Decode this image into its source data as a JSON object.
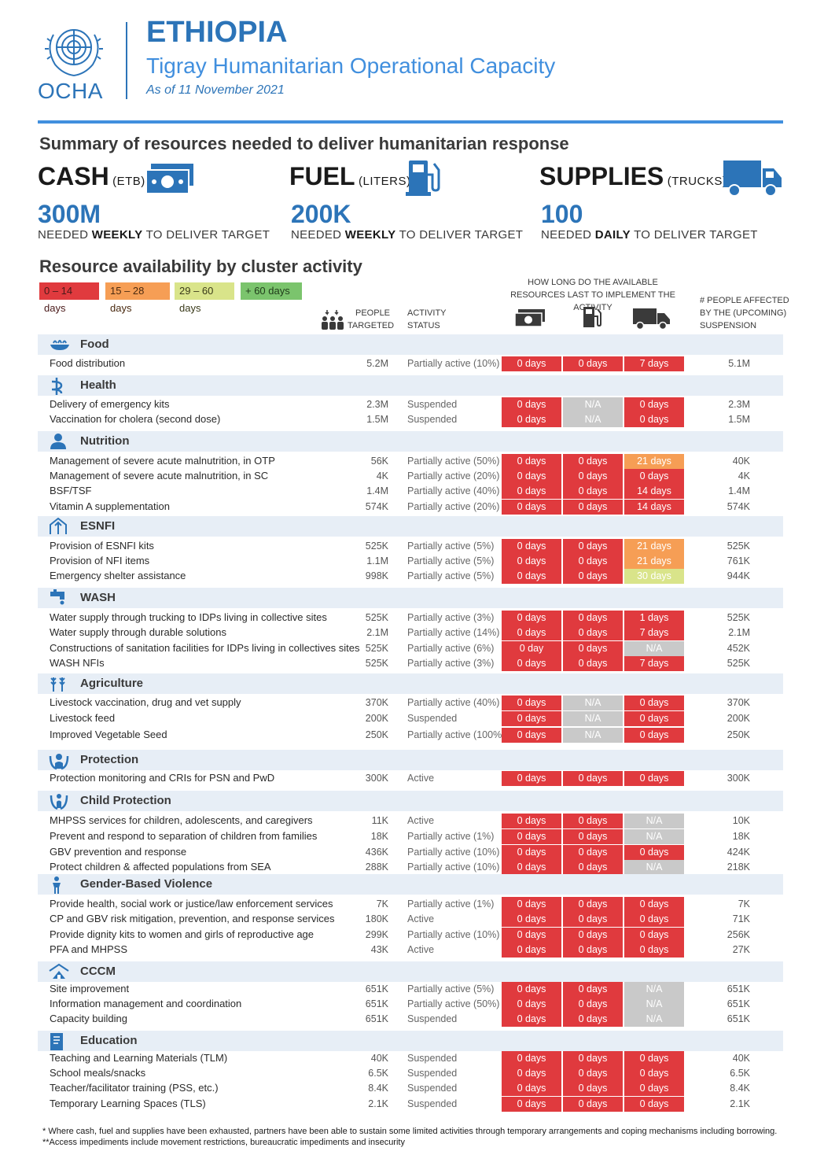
{
  "header": {
    "logo_text": "OCHA",
    "country": "ETHIOPIA",
    "title": "Tigray Humanitarian Operational Capacity",
    "date": "As of 11 November 2021"
  },
  "summary": {
    "title": "Summary of resources needed to deliver humanitarian response",
    "cash": {
      "label": "CASH",
      "unit": "(ETB)",
      "value": "300M",
      "note_pre": "NEEDED ",
      "note_bold": "WEEKLY",
      "note_post": " TO DELIVER TARGET"
    },
    "fuel": {
      "label": "FUEL",
      "unit": "(LITERS)",
      "value": "200K",
      "note_pre": "NEEDED ",
      "note_bold": "WEEKLY",
      "note_post": " TO DELIVER TARGET"
    },
    "supplies": {
      "label": "SUPPLIES",
      "unit": "(TRUCKS)",
      "value": "100",
      "note_pre": "NEEDED ",
      "note_bold": "DAILY",
      "note_post": " TO DELIVER TARGET"
    }
  },
  "availability": {
    "title": "Resource availability by cluster activity",
    "legend": [
      "0 – 14 days",
      "15 – 28 days",
      "29 – 60 days",
      "+ 60 days"
    ],
    "legend_colors": [
      "#e03a3e",
      "#f69e55",
      "#d9e48a",
      "#7bc46d"
    ],
    "col_people_1": "PEOPLE",
    "col_people_2": "TARGETED",
    "col_status_1": "ACTIVITY",
    "col_status_2": "STATUS",
    "col_duration_1": "HOW LONG DO THE AVAILABLE",
    "col_duration_2": "RESOURCES LAST TO IMPLEMENT THE ACTIVITY",
    "col_affected_1": "# PEOPLE AFFECTED",
    "col_affected_2": "BY THE (UPCOMING)",
    "col_affected_3": "SUSPENSION"
  },
  "clusters": [
    {
      "name": "Food",
      "icon": "food-icon",
      "rows": [
        {
          "activity": "Food distribution",
          "people": "5.2M",
          "status": "Partially active (10%)",
          "cash": "0 days",
          "fuel": "0 days",
          "supplies": "7 days",
          "cash_c": "red",
          "fuel_c": "red",
          "supplies_c": "red",
          "affected": "5.1M"
        }
      ]
    },
    {
      "name": "Health",
      "icon": "health-icon",
      "rows": [
        {
          "activity": "Delivery of emergency kits",
          "people": "2.3M",
          "status": "Suspended",
          "cash": "0 days",
          "fuel": "N/A",
          "supplies": "0 days",
          "cash_c": "red",
          "fuel_c": "na",
          "supplies_c": "red",
          "affected": "2.3M"
        },
        {
          "activity": "Vaccination for cholera (second dose)",
          "people": "1.5M",
          "status": "Suspended",
          "cash": "0 days",
          "fuel": "N/A",
          "supplies": "0 days",
          "cash_c": "red",
          "fuel_c": "na",
          "supplies_c": "red",
          "affected": "1.5M"
        }
      ]
    },
    {
      "name": "Nutrition",
      "icon": "nutrition-icon",
      "rows": [
        {
          "activity": "Management of severe acute malnutrition, in OTP",
          "people": "56K",
          "status": "Partially active (50%)",
          "cash": "0 days",
          "fuel": "0 days",
          "supplies": "21 days",
          "cash_c": "red",
          "fuel_c": "red",
          "supplies_c": "orange",
          "affected": "40K"
        },
        {
          "activity": "Management of severe acute malnutrition, in SC",
          "people": "4K",
          "status": "Partially active (20%)",
          "cash": "0 days",
          "fuel": "0 days",
          "supplies": "0 days",
          "cash_c": "red",
          "fuel_c": "red",
          "supplies_c": "red",
          "affected": "4K"
        },
        {
          "activity": "BSF/TSF",
          "people": "1.4M",
          "status": "Partially active (40%)",
          "cash": "0 days",
          "fuel": "0 days",
          "supplies": "14 days",
          "cash_c": "red",
          "fuel_c": "red",
          "supplies_c": "red",
          "affected": "1.4M"
        },
        {
          "activity": "Vitamin A supplementation",
          "people": "574K",
          "status": "Partially active (20%)",
          "cash": "0 days",
          "fuel": "0 days",
          "supplies": "14 days",
          "cash_c": "red",
          "fuel_c": "red",
          "supplies_c": "red",
          "affected": "574K"
        }
      ]
    },
    {
      "name": "ESNFI",
      "icon": "shelter-icon",
      "rows": [
        {
          "activity": "Provision of ESNFI kits",
          "people": "525K",
          "status": "Partially active (5%)",
          "cash": "0 days",
          "fuel": "0 days",
          "supplies": "21 days",
          "cash_c": "red",
          "fuel_c": "red",
          "supplies_c": "orange",
          "affected": "525K"
        },
        {
          "activity": "Provision of NFI items",
          "people": "1.1M",
          "status": "Partially active (5%)",
          "cash": "0 days",
          "fuel": "0 days",
          "supplies": "21 days",
          "cash_c": "red",
          "fuel_c": "red",
          "supplies_c": "orange",
          "affected": "761K"
        },
        {
          "activity": "Emergency shelter assistance",
          "people": "998K",
          "status": "Partially active (5%)",
          "cash": "0 days",
          "fuel": "0 days",
          "supplies": "30 days",
          "cash_c": "red",
          "fuel_c": "red",
          "supplies_c": "yellow",
          "affected": "944K"
        }
      ]
    },
    {
      "name": "WASH",
      "icon": "water-tap-icon",
      "rows": [
        {
          "activity": "Water supply through trucking to IDPs living in collective sites",
          "people": "525K",
          "status": "Partially active (3%)",
          "cash": "0 days",
          "fuel": "0 days",
          "supplies": "1 days",
          "cash_c": "red",
          "fuel_c": "red",
          "supplies_c": "red",
          "affected": "525K"
        },
        {
          "activity": "Water supply through durable solutions",
          "people": "2.1M",
          "status": "Partially active (14%)",
          "cash": "0 days",
          "fuel": "0 days",
          "supplies": "7 days",
          "cash_c": "red",
          "fuel_c": "red",
          "supplies_c": "red",
          "affected": "2.1M"
        },
        {
          "activity": "Constructions of sanitation facilities for IDPs living in collectives sites",
          "people": "525K",
          "status": "Partially active (6%)",
          "cash": "0 day",
          "fuel": "0 days",
          "supplies": "N/A",
          "cash_c": "red",
          "fuel_c": "red",
          "supplies_c": "na",
          "affected": "452K"
        },
        {
          "activity": "WASH NFIs",
          "people": "525K",
          "status": "Partially active (3%)",
          "cash": "0 days",
          "fuel": "0 days",
          "supplies": "7 days",
          "cash_c": "red",
          "fuel_c": "red",
          "supplies_c": "red",
          "affected": "525K"
        }
      ]
    },
    {
      "name": "Agriculture",
      "icon": "wheat-icon",
      "rows": [
        {
          "activity": "Livestock vaccination, drug and vet supply",
          "people": "370K",
          "status": "Partially active (40%)",
          "cash": "0 days",
          "fuel": "N/A",
          "supplies": "0 days",
          "cash_c": "red",
          "fuel_c": "na",
          "supplies_c": "red",
          "affected": "370K"
        },
        {
          "activity": "Livestock feed",
          "people": "200K",
          "status": "Suspended",
          "cash": "0 days",
          "fuel": "N/A",
          "supplies": "0 days",
          "cash_c": "red",
          "fuel_c": "na",
          "supplies_c": "red",
          "affected": "200K"
        },
        {
          "activity": "Improved Vegetable Seed",
          "people": "250K",
          "status": "Partially active (100%)",
          "cash": "0 days",
          "fuel": "N/A",
          "supplies": "0 days",
          "cash_c": "red",
          "fuel_c": "na",
          "supplies_c": "red",
          "affected": "250K"
        }
      ]
    },
    {
      "name": "Protection",
      "icon": "protection-icon",
      "rows": [
        {
          "activity": "Protection monitoring and CRIs for PSN and PwD",
          "people": "300K",
          "status": "Active",
          "cash": "0 days",
          "fuel": "0 days",
          "supplies": "0  days",
          "cash_c": "red",
          "fuel_c": "red",
          "supplies_c": "red",
          "affected": "300K"
        }
      ]
    },
    {
      "name": "Child Protection",
      "icon": "child-protection-icon",
      "rows": [
        {
          "activity": "MHPSS services for children, adolescents, and caregivers",
          "people": "11K",
          "status": "Active",
          "cash": "0 days",
          "fuel": "0 days",
          "supplies": "N/A",
          "cash_c": "red",
          "fuel_c": "red",
          "supplies_c": "na",
          "affected": "10K"
        },
        {
          "activity": "Prevent and respond to separation of children from families",
          "people": "18K",
          "status": "Partially active (1%)",
          "cash": "0  days",
          "fuel": "0 days",
          "supplies": "N/A",
          "cash_c": "red",
          "fuel_c": "red",
          "supplies_c": "na",
          "affected": "18K"
        },
        {
          "activity": "GBV prevention and response",
          "people": "436K",
          "status": "Partially active (10%)",
          "cash": "0 days",
          "fuel": "0 days",
          "supplies": "0 days",
          "cash_c": "red",
          "fuel_c": "red",
          "supplies_c": "red",
          "affected": "424K"
        },
        {
          "activity": "Protect children & affected populations from SEA",
          "people": "288K",
          "status": "Partially active (10%)",
          "cash": "0 days",
          "fuel": "0 days",
          "supplies": "N/A",
          "cash_c": "red",
          "fuel_c": "red",
          "supplies_c": "na",
          "affected": "218K"
        }
      ]
    },
    {
      "name": "Gender-Based Violence",
      "icon": "gender-icon",
      "rows": [
        {
          "activity": "Provide health, social work or justice/law enforcement services",
          "people": "7K",
          "status": "Partially active (1%)",
          "cash": "0 days",
          "fuel": "0 days",
          "supplies": "0 days",
          "cash_c": "red",
          "fuel_c": "red",
          "supplies_c": "red",
          "affected": "7K"
        },
        {
          "activity": "CP and GBV risk mitigation, prevention, and response services",
          "people": "180K",
          "status": "Active",
          "cash": "0 days",
          "fuel": "0 days",
          "supplies": "0 days",
          "cash_c": "red",
          "fuel_c": "red",
          "supplies_c": "red",
          "affected": "71K"
        },
        {
          "activity": "Provide dignity kits to women and girls of reproductive age",
          "people": "299K",
          "status": "Partially active (10%)",
          "cash": "0 days",
          "fuel": "0 days",
          "supplies": "0 days",
          "cash_c": "red",
          "fuel_c": "red",
          "supplies_c": "red",
          "affected": "256K"
        },
        {
          "activity": "PFA and MHPSS",
          "people": "43K",
          "status": "Active",
          "cash": "0 days",
          "fuel": "0 days",
          "supplies": "0 days",
          "cash_c": "red",
          "fuel_c": "red",
          "supplies_c": "red",
          "affected": "27K"
        }
      ]
    },
    {
      "name": "CCCM",
      "icon": "camp-icon",
      "rows": [
        {
          "activity": "Site improvement",
          "people": "651K",
          "status": "Partially active (5%)",
          "cash": "0 days",
          "fuel": "0 days",
          "supplies": "N/A",
          "cash_c": "red",
          "fuel_c": "red",
          "supplies_c": "na",
          "affected": "651K"
        },
        {
          "activity": "Information management and coordination",
          "people": "651K",
          "status": "Partially active (50%)",
          "cash": "0 days",
          "fuel": "0 days",
          "supplies": "N/A",
          "cash_c": "red",
          "fuel_c": "red",
          "supplies_c": "na",
          "affected": "651K"
        },
        {
          "activity": "Capacity building",
          "people": "651K",
          "status": "Suspended",
          "cash": "0 days",
          "fuel": "0 days",
          "supplies": "N/A",
          "cash_c": "red",
          "fuel_c": "red",
          "supplies_c": "na",
          "affected": "651K"
        }
      ]
    },
    {
      "name": "Education",
      "icon": "book-icon",
      "rows": [
        {
          "activity": "Teaching and Learning Materials (TLM)",
          "people": "40K",
          "status": "Suspended",
          "cash": "0 days",
          "fuel": "0 days",
          "supplies": "0 days",
          "cash_c": "red",
          "fuel_c": "red",
          "supplies_c": "red",
          "affected": "40K"
        },
        {
          "activity": "School meals/snacks",
          "people": "6.5K",
          "status": "Suspended",
          "cash": "0 days",
          "fuel": "0 days",
          "supplies": "0 days",
          "cash_c": "red",
          "fuel_c": "red",
          "supplies_c": "red",
          "affected": "6.5K"
        },
        {
          "activity": "Teacher/facilitator training (PSS, etc.)",
          "people": "8.4K",
          "status": "Suspended",
          "cash": "0 days",
          "fuel": "0 days",
          "supplies": "0 days",
          "cash_c": "red",
          "fuel_c": "red",
          "supplies_c": "red",
          "affected": "8.4K"
        },
        {
          "activity": "Temporary Learning Spaces (TLS)",
          "people": "2.1K",
          "status": "Suspended",
          "cash": "0 days",
          "fuel": "0 days",
          "supplies": "0 days",
          "cash_c": "red",
          "fuel_c": "red",
          "supplies_c": "red",
          "affected": "2.1K"
        }
      ]
    }
  ],
  "footnotes": [
    "* Where  cash, fuel and supplies have been exhausted, partners have been able to sustain some limited activities through temporary arrangements and coping mechanisms including borrowing.",
    "**Access impediments include movement restrictions, bureaucratic impediments and insecurity"
  ],
  "colors": {
    "accent": "#2c74b8",
    "red": "#e03a3e",
    "na": "#c9c9c9",
    "orange": "#f69e55",
    "yellow": "#d9e48a",
    "green": "#7bc46d",
    "band": "#e7eef6"
  }
}
